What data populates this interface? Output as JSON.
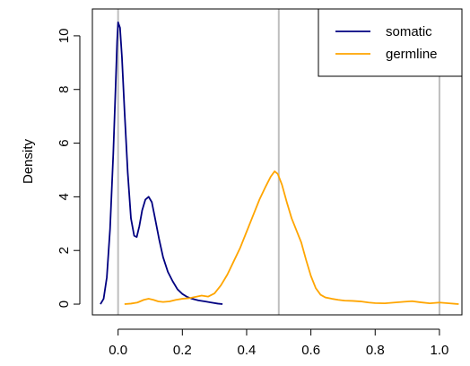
{
  "chart_data": {
    "type": "line",
    "title": "",
    "xlabel": "",
    "ylabel": "Density",
    "xlim": [
      -0.08,
      1.07
    ],
    "ylim": [
      -0.4,
      11.0
    ],
    "x_ticks": [
      0.0,
      0.2,
      0.4,
      0.6,
      0.8,
      1.0
    ],
    "x_tick_labels": [
      "0.0",
      "0.2",
      "0.4",
      "0.6",
      "0.8",
      "1.0"
    ],
    "y_ticks": [
      0,
      2,
      4,
      6,
      8,
      10
    ],
    "y_tick_labels": [
      "0",
      "2",
      "4",
      "6",
      "8",
      "10"
    ],
    "reference_lines_x": [
      0.0,
      0.5,
      1.0
    ],
    "reference_line_color": "#bebebe",
    "legend": {
      "position": "top-right"
    },
    "series": [
      {
        "name": "somatic",
        "color": "#000080",
        "points": [
          [
            -0.055,
            0.0
          ],
          [
            -0.045,
            0.2
          ],
          [
            -0.035,
            1.0
          ],
          [
            -0.025,
            2.8
          ],
          [
            -0.015,
            5.6
          ],
          [
            -0.008,
            8.0
          ],
          [
            -0.003,
            9.8
          ],
          [
            0.0,
            10.5
          ],
          [
            0.006,
            10.3
          ],
          [
            0.012,
            9.2
          ],
          [
            0.02,
            7.2
          ],
          [
            0.03,
            4.9
          ],
          [
            0.04,
            3.2
          ],
          [
            0.05,
            2.55
          ],
          [
            0.058,
            2.5
          ],
          [
            0.066,
            2.9
          ],
          [
            0.075,
            3.5
          ],
          [
            0.085,
            3.9
          ],
          [
            0.095,
            4.0
          ],
          [
            0.105,
            3.8
          ],
          [
            0.115,
            3.2
          ],
          [
            0.128,
            2.4
          ],
          [
            0.14,
            1.75
          ],
          [
            0.155,
            1.2
          ],
          [
            0.17,
            0.85
          ],
          [
            0.185,
            0.55
          ],
          [
            0.2,
            0.38
          ],
          [
            0.215,
            0.27
          ],
          [
            0.23,
            0.2
          ],
          [
            0.25,
            0.14
          ],
          [
            0.27,
            0.1
          ],
          [
            0.29,
            0.06
          ],
          [
            0.31,
            0.02
          ],
          [
            0.325,
            0.0
          ]
        ]
      },
      {
        "name": "germline",
        "color": "#ffa500",
        "points": [
          [
            0.02,
            0.0
          ],
          [
            0.04,
            0.02
          ],
          [
            0.06,
            0.06
          ],
          [
            0.08,
            0.16
          ],
          [
            0.095,
            0.2
          ],
          [
            0.11,
            0.16
          ],
          [
            0.125,
            0.1
          ],
          [
            0.14,
            0.08
          ],
          [
            0.16,
            0.1
          ],
          [
            0.18,
            0.16
          ],
          [
            0.2,
            0.2
          ],
          [
            0.22,
            0.22
          ],
          [
            0.24,
            0.27
          ],
          [
            0.26,
            0.32
          ],
          [
            0.28,
            0.28
          ],
          [
            0.3,
            0.4
          ],
          [
            0.32,
            0.7
          ],
          [
            0.34,
            1.1
          ],
          [
            0.36,
            1.6
          ],
          [
            0.38,
            2.1
          ],
          [
            0.4,
            2.7
          ],
          [
            0.42,
            3.3
          ],
          [
            0.44,
            3.9
          ],
          [
            0.46,
            4.4
          ],
          [
            0.475,
            4.75
          ],
          [
            0.487,
            4.95
          ],
          [
            0.497,
            4.85
          ],
          [
            0.51,
            4.45
          ],
          [
            0.525,
            3.8
          ],
          [
            0.54,
            3.2
          ],
          [
            0.555,
            2.75
          ],
          [
            0.57,
            2.3
          ],
          [
            0.585,
            1.65
          ],
          [
            0.6,
            1.05
          ],
          [
            0.615,
            0.6
          ],
          [
            0.63,
            0.35
          ],
          [
            0.645,
            0.25
          ],
          [
            0.665,
            0.2
          ],
          [
            0.685,
            0.16
          ],
          [
            0.705,
            0.13
          ],
          [
            0.73,
            0.12
          ],
          [
            0.755,
            0.1
          ],
          [
            0.78,
            0.06
          ],
          [
            0.8,
            0.04
          ],
          [
            0.83,
            0.03
          ],
          [
            0.86,
            0.06
          ],
          [
            0.89,
            0.09
          ],
          [
            0.915,
            0.11
          ],
          [
            0.94,
            0.07
          ],
          [
            0.97,
            0.03
          ],
          [
            1.0,
            0.06
          ],
          [
            1.03,
            0.03
          ],
          [
            1.06,
            0.0
          ]
        ]
      }
    ]
  }
}
